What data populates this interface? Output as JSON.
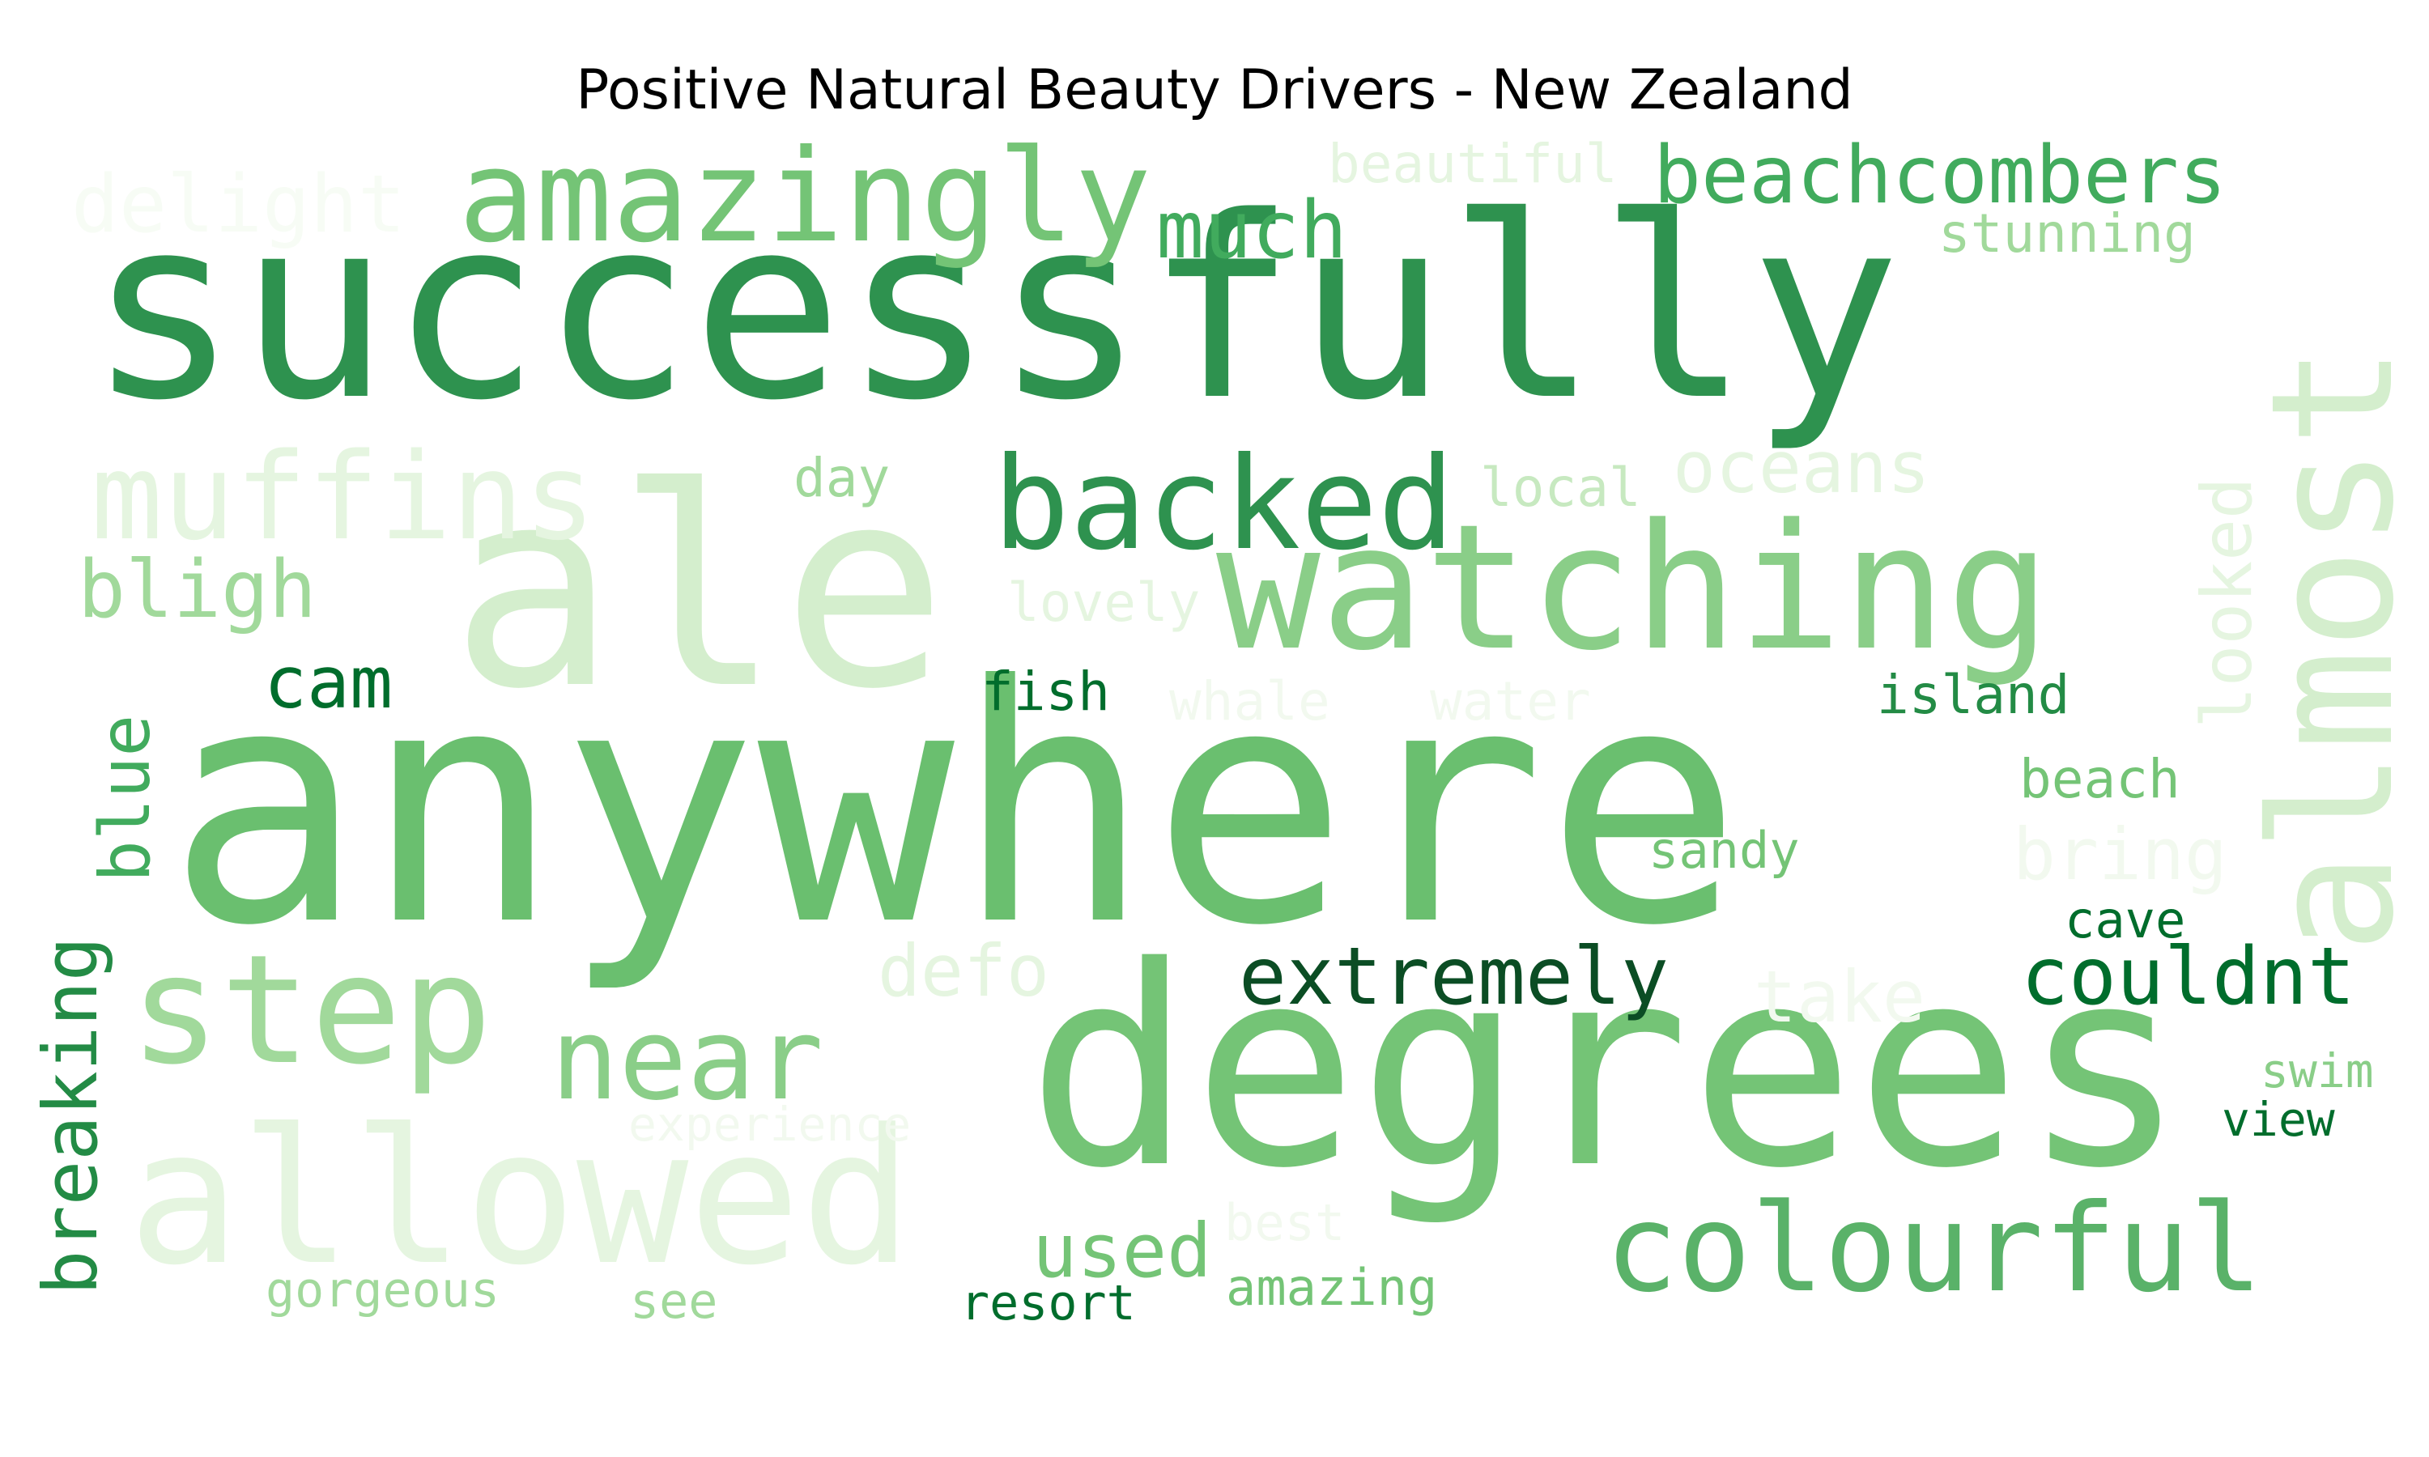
{
  "title": "Positive Natural Beauty Drivers - New Zealand",
  "palette": {
    "g1": "#f7fcf5",
    "g2": "#e5f5e0",
    "g3": "#d4eecd",
    "g4": "#c7e9c0",
    "g5": "#a1d99b",
    "g6": "#8ace88",
    "g7": "#74c476",
    "g8": "#5ab269",
    "g9": "#41ab5d",
    "g10": "#2e924f",
    "g11": "#238b45",
    "g12": "#006d2c"
  },
  "words": [
    {
      "text": "successfully",
      "color": "#2e924f"
    },
    {
      "text": "anywhere",
      "color": "#6abf6f"
    },
    {
      "text": "ale",
      "color": "#d4eecd"
    },
    {
      "text": "degrees",
      "color": "#74c476"
    },
    {
      "text": "watching",
      "color": "#8ace88"
    },
    {
      "text": "almost",
      "color": "#d4eecd"
    },
    {
      "text": "allowed",
      "color": "#e5f5e0"
    },
    {
      "text": "step",
      "color": "#a1d99b"
    },
    {
      "text": "amazingly",
      "color": "#74c476"
    },
    {
      "text": "backed",
      "color": "#2e924f"
    },
    {
      "text": "muffins",
      "color": "#e5f5e0"
    },
    {
      "text": "colourful",
      "color": "#5ab269"
    },
    {
      "text": "near",
      "color": "#8ace88"
    },
    {
      "text": "beachcombers",
      "color": "#41ab5d"
    },
    {
      "text": "delight",
      "color": "#f7fcf5"
    },
    {
      "text": "much",
      "color": "#41ab5d"
    },
    {
      "text": "bligh",
      "color": "#a1d99b"
    },
    {
      "text": "extremely",
      "color": "#0b4d24"
    },
    {
      "text": "couldnt",
      "color": "#006d2c"
    },
    {
      "text": "cam",
      "color": "#006d2c"
    },
    {
      "text": "breaking",
      "color": "#238b45"
    },
    {
      "text": "blue",
      "color": "#41ab5d"
    },
    {
      "text": "used",
      "color": "#74c476"
    },
    {
      "text": "oceans",
      "color": "#e5f5e0"
    },
    {
      "text": "looked",
      "color": "#e5f5e0"
    },
    {
      "text": "bring",
      "color": "#f2f9ef"
    },
    {
      "text": "take",
      "color": "#f2f9ef"
    },
    {
      "text": "defo",
      "color": "#e5f5e0"
    },
    {
      "text": "beautiful",
      "color": "#e5f5e0"
    },
    {
      "text": "stunning",
      "color": "#a1d99b"
    },
    {
      "text": "island",
      "color": "#238b45"
    },
    {
      "text": "beach",
      "color": "#74c476"
    },
    {
      "text": "fish",
      "color": "#006d2c"
    },
    {
      "text": "whale",
      "color": "#f2f9ef"
    },
    {
      "text": "water",
      "color": "#f2f9ef"
    },
    {
      "text": "lovely",
      "color": "#e5f5e0"
    },
    {
      "text": "local",
      "color": "#c7e9c0"
    },
    {
      "text": "day",
      "color": "#a1d99b"
    },
    {
      "text": "sandy",
      "color": "#74c476"
    },
    {
      "text": "cave",
      "color": "#006d2c"
    },
    {
      "text": "swim",
      "color": "#8ace88"
    },
    {
      "text": "view",
      "color": "#006d2c"
    },
    {
      "text": "experience",
      "color": "#f2f9ef"
    },
    {
      "text": "best",
      "color": "#f2f9ef"
    },
    {
      "text": "amazing",
      "color": "#74c476"
    },
    {
      "text": "gorgeous",
      "color": "#a1d99b"
    },
    {
      "text": "see",
      "color": "#a1d99b"
    },
    {
      "text": "resort",
      "color": "#006d2c"
    }
  ]
}
